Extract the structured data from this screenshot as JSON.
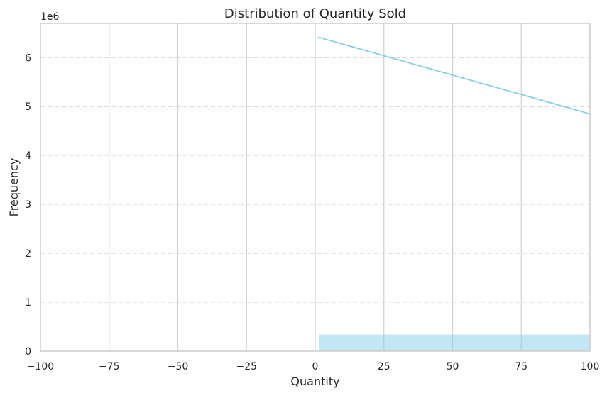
{
  "chart_data": {
    "type": "bar",
    "title": "Distribution of Quantity Sold",
    "xlabel": "Quantity",
    "ylabel": "Frequency",
    "y_offset_label": "1e6",
    "xlim": [
      -100,
      100
    ],
    "ylim": [
      0,
      6.7
    ],
    "x_ticks": [
      -100,
      -75,
      -50,
      -25,
      0,
      25,
      50,
      75,
      100
    ],
    "x_tick_labels": [
      "−100",
      "−75",
      "−50",
      "−25",
      "0",
      "25",
      "50",
      "75",
      "100"
    ],
    "y_ticks": [
      0,
      1,
      2,
      3,
      4,
      5,
      6
    ],
    "y_tick_labels": [
      "0",
      "1",
      "2",
      "3",
      "4",
      "5",
      "6"
    ],
    "grid": {
      "x": "solid",
      "y": "dashed"
    },
    "histogram": {
      "bin_start": 1.3,
      "bin_end": 100,
      "value": 0.34
    },
    "kde_line": {
      "x": [
        1,
        100
      ],
      "y": [
        6.42,
        4.85
      ]
    },
    "colors": {
      "bar": "#87ceeb",
      "line": "#87ceeb",
      "grid": "#d0d0d0",
      "spine": "#cccccc"
    }
  }
}
